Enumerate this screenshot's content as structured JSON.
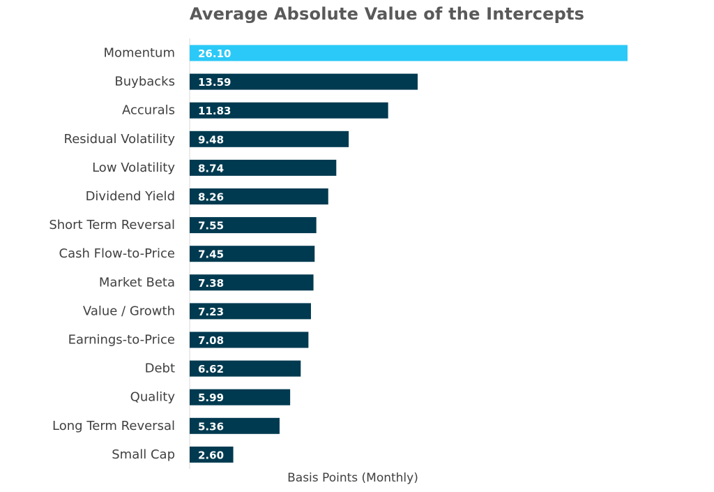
{
  "colors": {
    "highlight_bar": "#2bc9f7",
    "bar": "#003a50",
    "axis_line": "#d9d9d9",
    "title": "#595959",
    "label": "#404040",
    "data_label": "#ffffff"
  },
  "chart_data": {
    "type": "bar",
    "orientation": "horizontal",
    "title": "Average Absolute Value of the Intercepts",
    "xlabel": "Basis Points (Monthly)",
    "ylabel": "",
    "xlim": [
      0,
      26.1
    ],
    "grid": false,
    "legend": "none",
    "highlight_index": 0,
    "categories": [
      "Momentum",
      "Buybacks",
      "Accurals",
      "Residual Volatility",
      "Low Volatility",
      "Dividend Yield",
      "Short Term Reversal",
      "Cash Flow-to-Price",
      "Market Beta",
      "Value / Growth",
      "Earnings-to-Price",
      "Debt",
      "Quality",
      "Long Term Reversal",
      "Small Cap"
    ],
    "values": [
      26.1,
      13.59,
      11.83,
      9.48,
      8.74,
      8.26,
      7.55,
      7.45,
      7.38,
      7.23,
      7.08,
      6.62,
      5.99,
      5.36,
      2.6
    ],
    "data_labels": [
      "26.10",
      "13.59",
      "11.83",
      "9.48",
      "8.74",
      "8.26",
      "7.55",
      "7.45",
      "7.38",
      "7.23",
      "7.08",
      "6.62",
      "5.99",
      "5.36",
      "2.60"
    ]
  }
}
